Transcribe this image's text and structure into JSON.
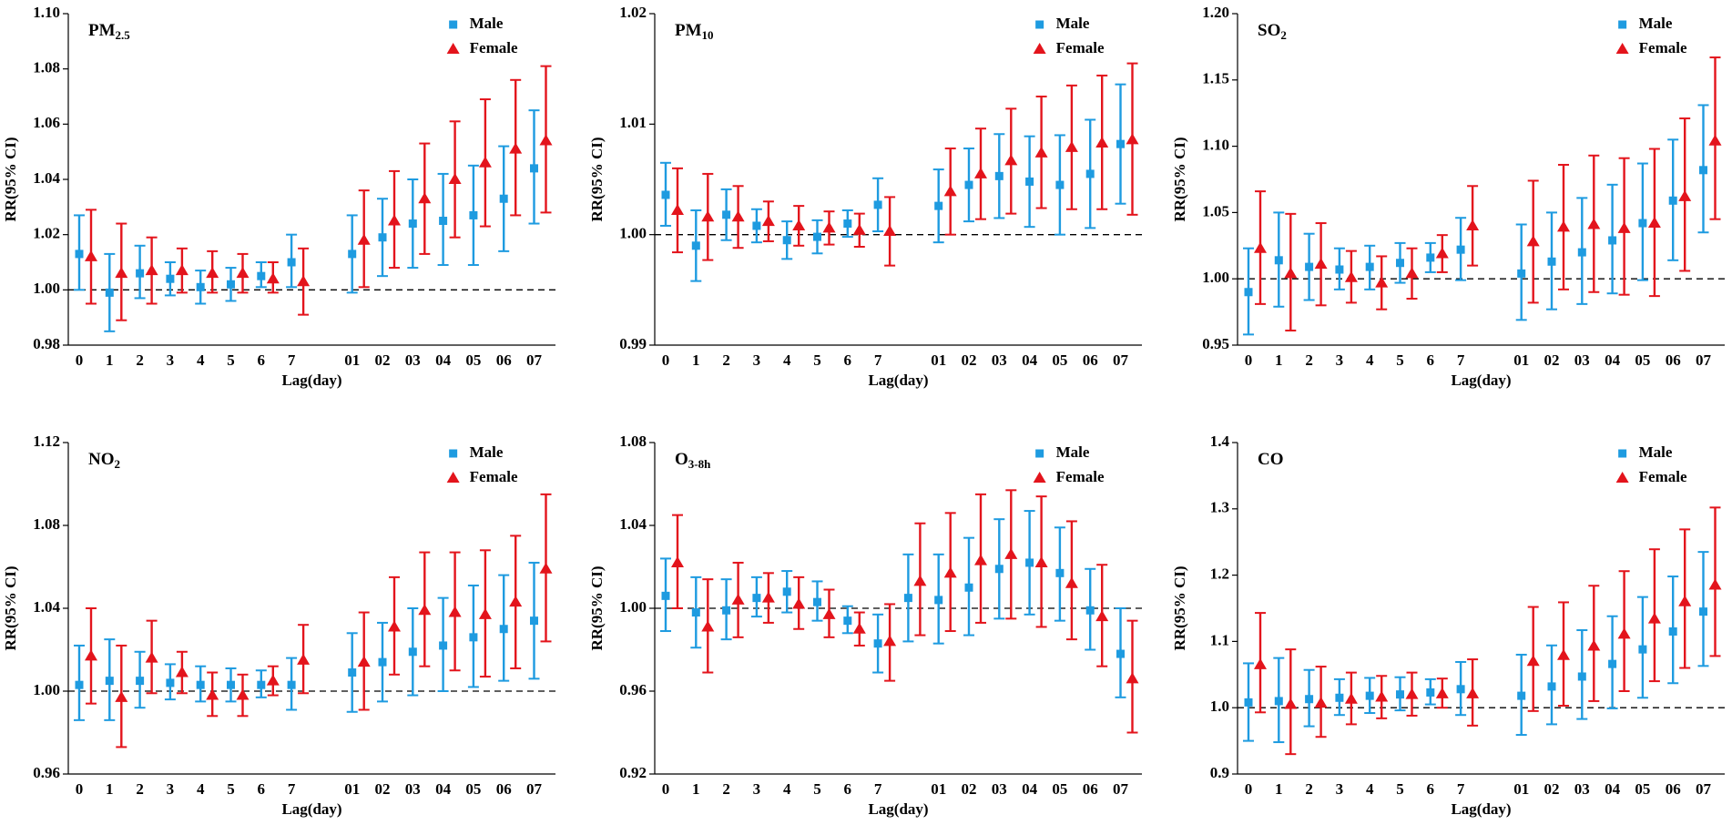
{
  "chart_data": [
    {
      "type": "errorbar",
      "title": [
        "PM",
        "2.5"
      ],
      "xlabel": "Lag(day)",
      "ylabel": "RR(95% CI)",
      "categories": [
        "0",
        "1",
        "2",
        "3",
        "4",
        "5",
        "6",
        "7",
        null,
        "01",
        "02",
        "03",
        "04",
        "05",
        "06",
        "07"
      ],
      "series": [
        {
          "name": "Male",
          "color": "#1e9be0",
          "marker": "square",
          "values": [
            1.013,
            0.999,
            1.006,
            1.004,
            1.001,
            1.002,
            1.005,
            1.01,
            null,
            1.013,
            1.019,
            1.024,
            1.025,
            1.027,
            1.033,
            1.044
          ],
          "lower": [
            1.0,
            0.985,
            0.997,
            0.998,
            0.995,
            0.996,
            1.001,
            1.001,
            null,
            0.999,
            1.005,
            1.008,
            1.009,
            1.009,
            1.014,
            1.024
          ],
          "upper": [
            1.027,
            1.013,
            1.016,
            1.01,
            1.007,
            1.008,
            1.01,
            1.02,
            null,
            1.027,
            1.033,
            1.04,
            1.042,
            1.045,
            1.052,
            1.065
          ]
        },
        {
          "name": "Female",
          "color": "#e3141c",
          "marker": "triangle",
          "values": [
            1.012,
            1.006,
            1.007,
            1.007,
            1.006,
            1.006,
            1.004,
            1.003,
            null,
            1.018,
            1.025,
            1.033,
            1.04,
            1.046,
            1.051,
            1.054
          ],
          "lower": [
            0.995,
            0.989,
            0.995,
            0.999,
            0.999,
            0.999,
            0.999,
            0.991,
            null,
            1.001,
            1.008,
            1.013,
            1.019,
            1.023,
            1.027,
            1.028
          ],
          "upper": [
            1.029,
            1.024,
            1.019,
            1.015,
            1.014,
            1.013,
            1.01,
            1.015,
            null,
            1.036,
            1.043,
            1.053,
            1.061,
            1.069,
            1.076,
            1.081
          ]
        }
      ],
      "ylim": [
        0.98,
        1.1
      ],
      "yticks": [
        0.98,
        {
          "value": 1.0,
          "label": "1.00"
        },
        1.02,
        1.04,
        1.06,
        1.08,
        {
          "value": 1.1,
          "label": "1.10"
        }
      ],
      "reference_line": 1,
      "legend": "upper right"
    },
    {
      "type": "errorbar",
      "title": [
        "PM",
        "10"
      ],
      "xlabel": "Lag(day)",
      "ylabel": "RR(95% CI)",
      "categories": [
        "0",
        "1",
        "2",
        "3",
        "4",
        "5",
        "6",
        "7",
        null,
        "01",
        "02",
        "03",
        "04",
        "05",
        "06",
        "07"
      ],
      "series": [
        {
          "name": "Male",
          "color": "#1e9be0",
          "marker": "square",
          "values": [
            1.0036,
            0.999,
            1.0018,
            1.0008,
            0.9995,
            0.9998,
            1.001,
            1.0027,
            null,
            1.0026,
            1.0045,
            1.0053,
            1.0048,
            1.0045,
            1.0055,
            1.0082
          ],
          "lower": [
            1.0008,
            0.9958,
            0.9995,
            0.9993,
            0.9978,
            0.9983,
            0.9998,
            1.0003,
            null,
            0.9993,
            1.0012,
            1.0015,
            1.0007,
            1.0,
            1.0006,
            1.0028
          ],
          "upper": [
            1.0065,
            1.0022,
            1.0041,
            1.0023,
            1.0012,
            1.0013,
            1.0022,
            1.0051,
            null,
            1.0059,
            1.0078,
            1.0091,
            1.0089,
            1.009,
            1.0104,
            1.0136
          ]
        },
        {
          "name": "Female",
          "color": "#e3141c",
          "marker": "triangle",
          "values": [
            1.0022,
            1.0016,
            1.0016,
            1.0012,
            1.0008,
            1.0006,
            1.0004,
            1.0003,
            null,
            1.0039,
            1.0055,
            1.0067,
            1.0074,
            1.0079,
            1.0083,
            1.0086
          ],
          "lower": [
            0.9984,
            0.9977,
            0.9988,
            0.9994,
            0.999,
            0.9991,
            0.9989,
            0.9972,
            null,
            1.0,
            1.0014,
            1.0019,
            1.0024,
            1.0023,
            1.0023,
            1.0018
          ],
          "upper": [
            1.006,
            1.0055,
            1.0044,
            1.003,
            1.0026,
            1.0021,
            1.0019,
            1.0034,
            null,
            1.0078,
            1.0096,
            1.0114,
            1.0125,
            1.0135,
            1.0144,
            1.0155
          ]
        }
      ],
      "ylim": [
        0.99,
        1.02
      ],
      "yticks": [
        0.99,
        {
          "value": 1.0,
          "label": "1.00"
        },
        1.01,
        1.02
      ],
      "reference_line": 1,
      "legend": "upper right"
    },
    {
      "type": "errorbar",
      "title": [
        "SO",
        "2"
      ],
      "xlabel": "Lag(day)",
      "ylabel": "RR(95% CI)",
      "categories": [
        "0",
        "1",
        "2",
        "3",
        "4",
        "5",
        "6",
        "7",
        null,
        "01",
        "02",
        "03",
        "04",
        "05",
        "06",
        "07"
      ],
      "series": [
        {
          "name": "Male",
          "color": "#1e9be0",
          "marker": "square",
          "values": [
            0.99,
            1.014,
            1.009,
            1.007,
            1.009,
            1.012,
            1.016,
            1.022,
            null,
            1.004,
            1.013,
            1.02,
            1.029,
            1.042,
            1.059,
            1.082
          ],
          "lower": [
            0.958,
            0.979,
            0.984,
            0.992,
            0.992,
            0.997,
            1.005,
            0.999,
            null,
            0.969,
            0.977,
            0.981,
            0.989,
            0.999,
            1.014,
            1.035
          ],
          "upper": [
            1.023,
            1.05,
            1.034,
            1.023,
            1.025,
            1.027,
            1.027,
            1.046,
            null,
            1.041,
            1.05,
            1.061,
            1.071,
            1.087,
            1.105,
            1.131
          ]
        },
        {
          "name": "Female",
          "color": "#e3141c",
          "marker": "triangle",
          "values": [
            1.023,
            1.004,
            1.011,
            1.001,
            0.997,
            1.004,
            1.019,
            1.04,
            null,
            1.028,
            1.039,
            1.041,
            1.038,
            1.042,
            1.062,
            1.104
          ],
          "lower": [
            0.981,
            0.961,
            0.98,
            0.982,
            0.977,
            0.985,
            1.005,
            1.01,
            null,
            0.982,
            0.992,
            0.99,
            0.988,
            0.987,
            1.006,
            1.045
          ],
          "upper": [
            1.066,
            1.049,
            1.042,
            1.021,
            1.017,
            1.023,
            1.033,
            1.07,
            null,
            1.074,
            1.086,
            1.093,
            1.091,
            1.098,
            1.121,
            1.167
          ]
        }
      ],
      "ylim": [
        0.95,
        1.2
      ],
      "yticks": [
        0.95,
        {
          "value": 1.0,
          "label": "1.00"
        },
        1.05,
        {
          "value": 1.1,
          "label": "1.10"
        },
        1.15,
        {
          "value": 1.2,
          "label": "1.20"
        }
      ],
      "reference_line": 1,
      "legend": "upper right"
    },
    {
      "type": "errorbar",
      "title": [
        "NO",
        "2"
      ],
      "xlabel": "Lag(day)",
      "ylabel": "RR(95% CI)",
      "categories": [
        "0",
        "1",
        "2",
        "3",
        "4",
        "5",
        "6",
        "7",
        null,
        "01",
        "02",
        "03",
        "04",
        "05",
        "06",
        "07"
      ],
      "series": [
        {
          "name": "Male",
          "color": "#1e9be0",
          "marker": "square",
          "values": [
            1.003,
            1.005,
            1.005,
            1.004,
            1.003,
            1.003,
            1.003,
            1.003,
            null,
            1.009,
            1.014,
            1.019,
            1.022,
            1.026,
            1.03,
            1.034
          ],
          "lower": [
            0.986,
            0.986,
            0.992,
            0.996,
            0.995,
            0.995,
            0.997,
            0.991,
            null,
            0.99,
            0.995,
            0.998,
            1.0,
            1.002,
            1.005,
            1.006
          ],
          "upper": [
            1.022,
            1.025,
            1.019,
            1.013,
            1.012,
            1.011,
            1.01,
            1.016,
            null,
            1.028,
            1.033,
            1.04,
            1.045,
            1.051,
            1.056,
            1.062
          ]
        },
        {
          "name": "Female",
          "color": "#e3141c",
          "marker": "triangle",
          "values": [
            1.017,
            0.997,
            1.016,
            1.009,
            0.998,
            0.998,
            1.005,
            1.015,
            null,
            1.014,
            1.031,
            1.039,
            1.038,
            1.037,
            1.043,
            1.059
          ],
          "lower": [
            0.994,
            0.973,
            0.999,
            0.999,
            0.988,
            0.988,
            0.998,
            0.999,
            null,
            0.991,
            1.008,
            1.012,
            1.01,
            1.007,
            1.011,
            1.024
          ],
          "upper": [
            1.04,
            1.022,
            1.034,
            1.019,
            1.009,
            1.008,
            1.012,
            1.032,
            null,
            1.038,
            1.055,
            1.067,
            1.067,
            1.068,
            1.075,
            1.095
          ]
        }
      ],
      "ylim": [
        0.96,
        1.12
      ],
      "yticks": [
        0.96,
        {
          "value": 1.0,
          "label": "1.00"
        },
        1.04,
        1.08,
        1.12
      ],
      "reference_line": 1,
      "legend": "upper right"
    },
    {
      "type": "errorbar",
      "title": [
        "O",
        "3-8h"
      ],
      "xlabel": "Lag(day)",
      "ylabel": "RR(95% CI)",
      "categories": [
        "0",
        "1",
        "2",
        "3",
        "4",
        "5",
        "6",
        "7",
        null,
        "01",
        "02",
        "03",
        "04",
        "05",
        "06",
        "07"
      ],
      "series": [
        {
          "name": "Male",
          "color": "#1e9be0",
          "marker": "square",
          "values": [
            1.006,
            0.998,
            0.999,
            1.005,
            1.008,
            1.003,
            0.994,
            0.983,
            1.005,
            1.004,
            1.01,
            1.019,
            1.022,
            1.017,
            0.999,
            0.978
          ],
          "lower": [
            0.989,
            0.981,
            0.985,
            0.996,
            0.998,
            0.994,
            0.988,
            0.969,
            0.984,
            0.983,
            0.987,
            0.995,
            0.997,
            0.994,
            0.98,
            0.957
          ],
          "upper": [
            1.024,
            1.015,
            1.014,
            1.015,
            1.018,
            1.013,
            1.001,
            0.997,
            1.026,
            1.026,
            1.034,
            1.043,
            1.047,
            1.039,
            1.019,
            1.0
          ]
        },
        {
          "name": "Female",
          "color": "#e3141c",
          "marker": "triangle",
          "values": [
            1.022,
            0.991,
            1.004,
            1.005,
            1.002,
            0.997,
            0.99,
            0.984,
            1.013,
            1.017,
            1.023,
            1.026,
            1.022,
            1.012,
            0.996,
            0.966
          ],
          "lower": [
            1.0,
            0.969,
            0.986,
            0.993,
            0.99,
            0.986,
            0.982,
            0.965,
            0.987,
            0.989,
            0.993,
            0.995,
            0.991,
            0.985,
            0.972,
            0.94
          ],
          "upper": [
            1.045,
            1.014,
            1.022,
            1.017,
            1.015,
            1.009,
            0.998,
            1.002,
            1.041,
            1.046,
            1.055,
            1.057,
            1.054,
            1.042,
            1.021,
            0.994
          ]
        }
      ],
      "ylim": [
        0.92,
        1.08
      ],
      "yticks": [
        0.92,
        0.96,
        {
          "value": 1.0,
          "label": "1.00"
        },
        1.04,
        1.08
      ],
      "reference_line": 1,
      "legend": "upper right"
    },
    {
      "type": "errorbar",
      "title": [
        "CO"
      ],
      "xlabel": "Lag(day)",
      "ylabel": "RR(95% CI)",
      "categories": [
        "0",
        "1",
        "2",
        "3",
        "4",
        "5",
        "6",
        "7",
        null,
        "01",
        "02",
        "03",
        "04",
        "05",
        "06",
        "07"
      ],
      "series": [
        {
          "name": "Male",
          "color": "#1e9be0",
          "marker": "square",
          "values": [
            1.008,
            1.01,
            1.013,
            1.015,
            1.018,
            1.02,
            1.023,
            1.028,
            null,
            1.018,
            1.032,
            1.047,
            1.066,
            1.088,
            1.115,
            1.145
          ],
          "lower": [
            0.95,
            0.948,
            0.972,
            0.989,
            0.992,
            0.996,
            1.005,
            0.989,
            null,
            0.959,
            0.975,
            0.983,
            0.999,
            1.015,
            1.037,
            1.063
          ],
          "upper": [
            1.067,
            1.075,
            1.057,
            1.043,
            1.045,
            1.046,
            1.043,
            1.069,
            null,
            1.08,
            1.094,
            1.117,
            1.138,
            1.167,
            1.198,
            1.235
          ]
        },
        {
          "name": "Female",
          "color": "#e3141c",
          "marker": "triangle",
          "values": [
            1.065,
            1.005,
            1.007,
            1.013,
            1.016,
            1.02,
            1.021,
            1.021,
            null,
            1.07,
            1.079,
            1.093,
            1.111,
            1.134,
            1.16,
            1.185
          ],
          "lower": [
            0.993,
            0.93,
            0.956,
            0.975,
            0.984,
            0.988,
            1.0,
            0.973,
            null,
            0.995,
            1.003,
            1.01,
            1.025,
            1.04,
            1.06,
            1.078
          ],
          "upper": [
            1.143,
            1.088,
            1.062,
            1.053,
            1.048,
            1.053,
            1.044,
            1.073,
            null,
            1.152,
            1.159,
            1.184,
            1.206,
            1.239,
            1.269,
            1.302
          ]
        }
      ],
      "ylim": [
        0.9,
        1.4
      ],
      "yticks": [
        0.9,
        {
          "value": 1.0,
          "label": "1.0"
        },
        1.1,
        1.2,
        1.3,
        1.4
      ],
      "reference_line": 1,
      "legend": "upper right"
    }
  ]
}
